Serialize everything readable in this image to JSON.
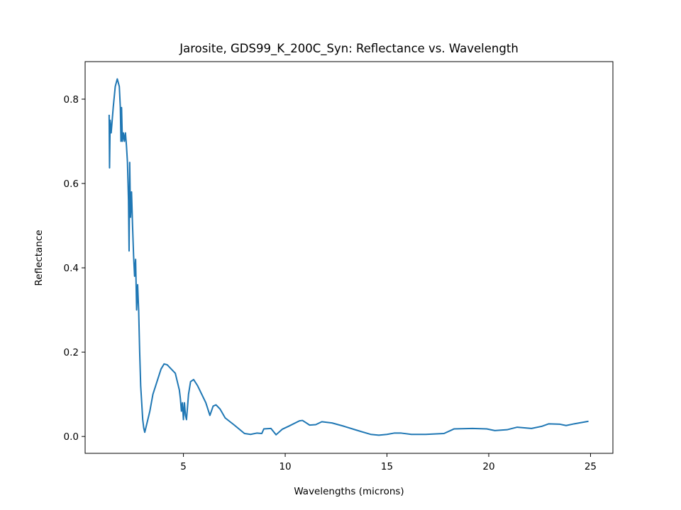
{
  "chart_data": {
    "type": "line",
    "title": "Jarosite, GDS99_K_200C_Syn: Reflectance vs. Wavelength",
    "x_label": "Wavelengths (microns)",
    "y_label": "Reflectance",
    "color": "#1f77b4",
    "x": [
      1.35,
      1.37,
      1.4,
      1.45,
      1.55,
      1.65,
      1.75,
      1.85,
      1.9,
      1.93,
      1.96,
      2.0,
      2.05,
      2.1,
      2.15,
      2.2,
      2.25,
      2.3,
      2.33,
      2.36,
      2.4,
      2.45,
      2.5,
      2.55,
      2.6,
      2.65,
      2.7,
      2.75,
      2.8,
      2.85,
      2.9,
      3.0,
      3.05,
      3.1,
      3.2,
      3.35,
      3.5,
      3.7,
      3.9,
      4.05,
      4.2,
      4.4,
      4.6,
      4.7,
      4.8,
      4.85,
      4.9,
      4.95,
      5.0,
      5.05,
      5.1,
      5.15,
      5.25,
      5.35,
      5.5,
      5.7,
      5.9,
      6.1,
      6.3,
      6.46,
      6.6,
      6.8,
      7.05,
      7.5,
      8.0,
      8.3,
      8.6,
      8.85,
      8.95,
      9.3,
      9.55,
      9.85,
      10.2,
      10.7,
      10.85,
      11.2,
      11.5,
      11.8,
      12.3,
      12.9,
      13.5,
      14.2,
      14.6,
      15.0,
      15.35,
      15.7,
      16.2,
      16.9,
      17.8,
      18.3,
      19.2,
      19.9,
      20.3,
      20.9,
      21.4,
      22.1,
      22.6,
      22.95,
      23.5,
      23.8,
      24.2,
      24.9
    ],
    "values": [
      0.763,
      0.637,
      0.75,
      0.72,
      0.78,
      0.83,
      0.848,
      0.83,
      0.78,
      0.7,
      0.78,
      0.7,
      0.72,
      0.7,
      0.72,
      0.69,
      0.65,
      0.56,
      0.44,
      0.65,
      0.52,
      0.58,
      0.5,
      0.43,
      0.38,
      0.42,
      0.3,
      0.36,
      0.3,
      0.2,
      0.12,
      0.04,
      0.02,
      0.01,
      0.03,
      0.06,
      0.1,
      0.13,
      0.16,
      0.172,
      0.17,
      0.16,
      0.15,
      0.13,
      0.11,
      0.09,
      0.06,
      0.08,
      0.04,
      0.08,
      0.05,
      0.04,
      0.1,
      0.13,
      0.135,
      0.12,
      0.1,
      0.08,
      0.05,
      0.072,
      0.075,
      0.065,
      0.044,
      0.027,
      0.007,
      0.005,
      0.008,
      0.007,
      0.018,
      0.019,
      0.004,
      0.017,
      0.025,
      0.037,
      0.038,
      0.027,
      0.028,
      0.035,
      0.032,
      0.024,
      0.015,
      0.005,
      0.003,
      0.005,
      0.008,
      0.008,
      0.005,
      0.005,
      0.007,
      0.018,
      0.019,
      0.018,
      0.014,
      0.016,
      0.022,
      0.019,
      0.024,
      0.03,
      0.029,
      0.026,
      0.03,
      0.036
    ],
    "xlim": [
      0.17,
      26.1
    ],
    "ylim": [
      -0.04,
      0.889
    ],
    "xticks": [
      5,
      10,
      15,
      20,
      25
    ],
    "yticks": [
      {
        "value": 0,
        "label": "0.0"
      },
      0.2,
      0.4,
      0.6,
      0.8
    ]
  }
}
